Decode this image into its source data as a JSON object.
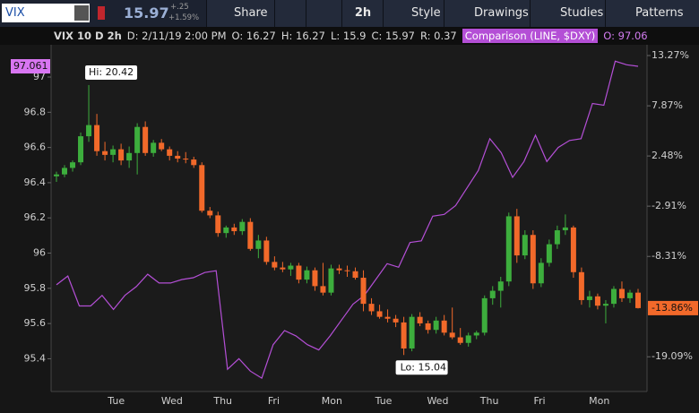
{
  "header": {
    "symbol": "VIX",
    "last": "15.97",
    "change": "+.25",
    "change_pct": "+1.59%",
    "buttons": [
      "Share",
      "2h",
      "Style",
      "Drawings",
      "Studies",
      "Patterns"
    ]
  },
  "info_bar": [
    "VIX 10 D 2h",
    "D: 2/11/19 2:00 PM",
    "O: 16.27",
    "H: 16.27",
    "L: 15.9",
    "C: 15.97",
    "R: 0.37"
  ],
  "comparison_info": {
    "label": "Comparison (LINE, $DXY)",
    "open": "O: 97.06"
  },
  "chart_data": {
    "type": "candlestick",
    "categories": [
      "Tue",
      "Wed",
      "Thu",
      "Fri",
      "Mon",
      "Tue",
      "Wed",
      "Thu",
      "Fri",
      "Mon"
    ],
    "ylim": [
      95.214,
      97.285
    ],
    "yticks": [
      95.4,
      95.6,
      95.8,
      96,
      96.2,
      96.4,
      96.6,
      96.8,
      97
    ],
    "y2lim": [
      -22.82,
      16.35
    ],
    "y2ticks": [
      {
        "value": -19.09,
        "label": "-19.09%"
      },
      {
        "value": -8.31,
        "label": "-8.31%"
      },
      {
        "value": -2.91,
        "label": "-2.91%"
      },
      {
        "value": 2.48,
        "label": "2.48%"
      },
      {
        "value": 7.87,
        "label": "7.87%"
      },
      {
        "value": 13.27,
        "label": "13.27%"
      }
    ],
    "candles": {
      "name": "VIX",
      "axis": "y2",
      "up_color": "#3dae3d",
      "down_color": "#f2692a",
      "ohlc": [
        [
          0.3,
          0.8,
          -0.3,
          0.5
        ],
        [
          0.5,
          1.5,
          0.2,
          1.2
        ],
        [
          1.2,
          2.0,
          0.8,
          1.8
        ],
        [
          1.8,
          5.0,
          1.5,
          4.6
        ],
        [
          4.6,
          10.1,
          4.0,
          5.8
        ],
        [
          5.8,
          7.0,
          2.5,
          3.0
        ],
        [
          3.0,
          4.0,
          2.0,
          2.6
        ],
        [
          2.6,
          3.6,
          1.8,
          3.2
        ],
        [
          3.2,
          3.8,
          1.5,
          2.0
        ],
        [
          2.0,
          3.5,
          1.2,
          2.8
        ],
        [
          2.8,
          6.0,
          0.5,
          5.6
        ],
        [
          5.6,
          6.2,
          2.5,
          2.8
        ],
        [
          2.8,
          4.2,
          2.4,
          3.9
        ],
        [
          3.9,
          4.3,
          3.0,
          3.2
        ],
        [
          3.2,
          3.5,
          2.0,
          2.5
        ],
        [
          2.5,
          3.0,
          1.8,
          2.2
        ],
        [
          2.2,
          2.9,
          1.7,
          2.1
        ],
        [
          2.1,
          2.4,
          1.2,
          1.5
        ],
        [
          1.5,
          1.8,
          -3.6,
          -3.4
        ],
        [
          -3.4,
          -3.0,
          -4.2,
          -3.9
        ],
        [
          -3.9,
          -3.5,
          -6.2,
          -5.8
        ],
        [
          -5.8,
          -5.0,
          -6.3,
          -5.2
        ],
        [
          -5.2,
          -4.8,
          -6.0,
          -5.6
        ],
        [
          -5.6,
          -4.3,
          -6.0,
          -4.6
        ],
        [
          -4.6,
          -4.2,
          -7.7,
          -7.5
        ],
        [
          -7.5,
          -6.0,
          -8.5,
          -6.6
        ],
        [
          -6.6,
          -6.2,
          -9.2,
          -8.9
        ],
        [
          -8.9,
          -8.3,
          -9.8,
          -9.5
        ],
        [
          -9.5,
          -8.9,
          -10.0,
          -9.7
        ],
        [
          -9.7,
          -9.0,
          -10.4,
          -9.3
        ],
        [
          -9.3,
          -9.0,
          -11.2,
          -10.8
        ],
        [
          -10.8,
          -9.4,
          -11.2,
          -9.8
        ],
        [
          -9.8,
          -9.5,
          -12.0,
          -11.5
        ],
        [
          -11.5,
          -9.0,
          -12.5,
          -12.2
        ],
        [
          -12.2,
          -9.2,
          -12.5,
          -9.6
        ],
        [
          -9.6,
          -9.2,
          -10.2,
          -9.8
        ],
        [
          -9.8,
          -9.3,
          -10.5,
          -9.9
        ],
        [
          -9.9,
          -9.5,
          -10.8,
          -10.6
        ],
        [
          -10.6,
          -9.8,
          -14.2,
          -13.4
        ],
        [
          -13.4,
          -12.8,
          -14.6,
          -14.2
        ],
        [
          -14.2,
          -13.5,
          -15.0,
          -14.8
        ],
        [
          -14.8,
          -14.0,
          -15.4,
          -15.0
        ],
        [
          -15.0,
          -14.6,
          -15.9,
          -15.4
        ],
        [
          -15.4,
          -14.8,
          -18.9,
          -18.2
        ],
        [
          -18.2,
          -14.5,
          -18.5,
          -14.8
        ],
        [
          -14.8,
          -14.3,
          -15.8,
          -15.5
        ],
        [
          -15.5,
          -15.2,
          -16.6,
          -16.2
        ],
        [
          -16.2,
          -14.8,
          -16.6,
          -15.2
        ],
        [
          -15.2,
          -14.6,
          -16.8,
          -16.5
        ],
        [
          -16.5,
          -13.8,
          -17.2,
          -17.0
        ],
        [
          -17.0,
          -16.0,
          -17.8,
          -17.6
        ],
        [
          -17.6,
          -16.5,
          -18.0,
          -16.8
        ],
        [
          -16.8,
          -16.3,
          -17.2,
          -16.5
        ],
        [
          -16.5,
          -12.5,
          -16.8,
          -12.8
        ],
        [
          -12.8,
          -11.5,
          -13.5,
          -12.0
        ],
        [
          -12.0,
          -10.5,
          -13.8,
          -11.0
        ],
        [
          -11.0,
          -3.6,
          -11.5,
          -4.0
        ],
        [
          -4.0,
          -3.2,
          -9.0,
          -8.2
        ],
        [
          -8.2,
          -5.5,
          -8.6,
          -6.0
        ],
        [
          -6.0,
          -5.5,
          -11.8,
          -11.2
        ],
        [
          -11.2,
          -8.5,
          -11.6,
          -9.0
        ],
        [
          -9.0,
          -6.5,
          -9.4,
          -7.0
        ],
        [
          -7.0,
          -5.0,
          -7.5,
          -5.5
        ],
        [
          -5.5,
          -3.8,
          -6.0,
          -5.2
        ],
        [
          -5.2,
          -5.0,
          -10.6,
          -10.0
        ],
        [
          -10.0,
          -9.5,
          -13.5,
          -13.0
        ],
        [
          -13.0,
          -12.0,
          -13.8,
          -12.6
        ],
        [
          -12.6,
          -12.3,
          -14.0,
          -13.6
        ],
        [
          -13.6,
          -13.0,
          -15.5,
          -13.4
        ],
        [
          -13.4,
          -11.5,
          -13.8,
          -11.8
        ],
        [
          -11.8,
          -11.0,
          -13.2,
          -12.8
        ],
        [
          -12.8,
          -11.9,
          -13.3,
          -12.2
        ],
        [
          -12.2,
          -11.8,
          -13.9,
          -13.86
        ]
      ],
      "last_label": "-13.86%",
      "hi_label": "Hi: 20.42",
      "lo_label": "Lo: 15.04"
    },
    "comparison": {
      "name": "$DXY",
      "color": "#b44fd6",
      "values": [
        95.82,
        95.87,
        95.7,
        95.7,
        95.76,
        95.68,
        95.76,
        95.81,
        95.88,
        95.83,
        95.83,
        95.85,
        95.86,
        95.89,
        95.9,
        95.34,
        95.4,
        95.33,
        95.29,
        95.48,
        95.56,
        95.53,
        95.48,
        95.45,
        95.53,
        95.62,
        95.71,
        95.76,
        95.85,
        95.94,
        95.92,
        96.06,
        96.07,
        96.21,
        96.22,
        96.27,
        96.37,
        96.47,
        96.65,
        96.57,
        96.43,
        96.52,
        96.67,
        96.52,
        96.6,
        96.64,
        96.65,
        96.85,
        96.84,
        97.09,
        97.07,
        97.061
      ],
      "last_label": "97.061"
    }
  }
}
